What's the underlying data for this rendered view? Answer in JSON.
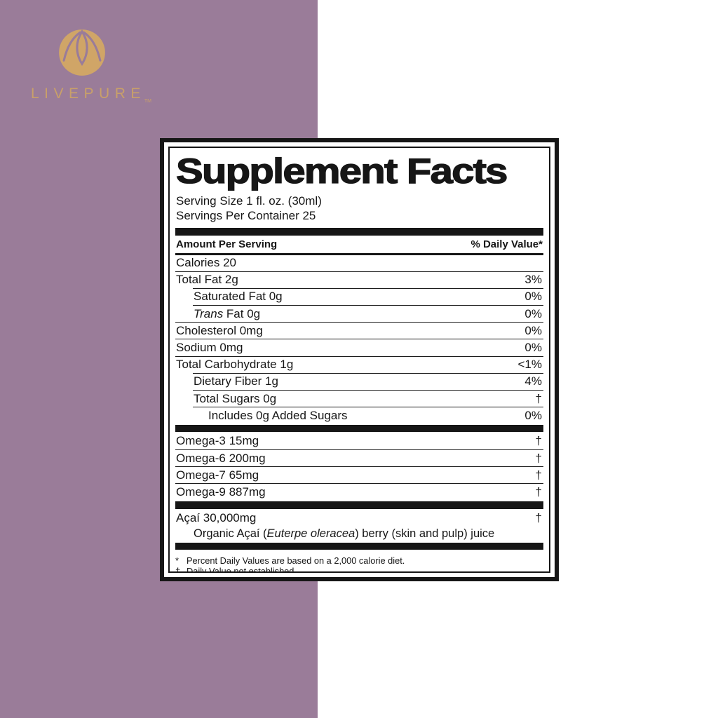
{
  "colors": {
    "purple": "#9a7c99",
    "gold": "#c9a069",
    "logo_gold": "#d0a567",
    "label_black": "#161616"
  },
  "brand": {
    "name": "LIVEPURE",
    "trademark": "TM",
    "logo_icon": "lotus-flower-in-circle"
  },
  "label": {
    "title": "Supplement Facts",
    "serving_size": "Serving Size 1 fl. oz. (30ml)",
    "servings_per_container": "Servings Per Container 25",
    "header": {
      "left": "Amount Per Serving",
      "right": "% Daily Value*"
    },
    "body": [
      {
        "t": "row",
        "ind": 0,
        "seg": [
          {
            "x": "Calories 20"
          }
        ],
        "v": ""
      },
      {
        "t": "rule",
        "ind": 0
      },
      {
        "t": "row",
        "ind": 0,
        "seg": [
          {
            "x": "Total Fat 2g"
          }
        ],
        "v": "3%"
      },
      {
        "t": "rule",
        "ind": 1
      },
      {
        "t": "row",
        "ind": 1,
        "seg": [
          {
            "x": "Saturated Fat 0g"
          }
        ],
        "v": "0%"
      },
      {
        "t": "rule",
        "ind": 1
      },
      {
        "t": "row",
        "ind": 1,
        "seg": [
          {
            "x": "Trans",
            "i": true
          },
          {
            "x": " Fat 0g"
          }
        ],
        "v": "0%"
      },
      {
        "t": "rule",
        "ind": 0
      },
      {
        "t": "row",
        "ind": 0,
        "seg": [
          {
            "x": "Cholesterol 0mg"
          }
        ],
        "v": "0%"
      },
      {
        "t": "rule",
        "ind": 0
      },
      {
        "t": "row",
        "ind": 0,
        "seg": [
          {
            "x": "Sodium 0mg"
          }
        ],
        "v": "0%"
      },
      {
        "t": "rule",
        "ind": 0
      },
      {
        "t": "row",
        "ind": 0,
        "seg": [
          {
            "x": "Total Carbohydrate 1g"
          }
        ],
        "v": "<1%"
      },
      {
        "t": "rule",
        "ind": 1
      },
      {
        "t": "row",
        "ind": 1,
        "seg": [
          {
            "x": "Dietary Fiber 1g"
          }
        ],
        "v": "4%"
      },
      {
        "t": "rule",
        "ind": 1
      },
      {
        "t": "row",
        "ind": 1,
        "seg": [
          {
            "x": "Total Sugars 0g"
          }
        ],
        "v": "†"
      },
      {
        "t": "rule",
        "ind": 1
      },
      {
        "t": "row",
        "ind": 2,
        "seg": [
          {
            "x": "Includes 0g Added Sugars"
          }
        ],
        "v": "0%"
      },
      {
        "t": "bar"
      },
      {
        "t": "row",
        "ind": 0,
        "seg": [
          {
            "x": "Omega-3 15mg"
          }
        ],
        "v": "†"
      },
      {
        "t": "rule",
        "ind": 0
      },
      {
        "t": "row",
        "ind": 0,
        "seg": [
          {
            "x": "Omega-6 200mg"
          }
        ],
        "v": "†"
      },
      {
        "t": "rule",
        "ind": 0
      },
      {
        "t": "row",
        "ind": 0,
        "seg": [
          {
            "x": "Omega-7 65mg"
          }
        ],
        "v": "†"
      },
      {
        "t": "rule",
        "ind": 0
      },
      {
        "t": "row",
        "ind": 0,
        "seg": [
          {
            "x": "Omega-9 887mg"
          }
        ],
        "v": "†"
      },
      {
        "t": "bar"
      },
      {
        "t": "row",
        "ind": 0,
        "seg": [
          {
            "x": "Açaí 30,000mg"
          }
        ],
        "v": "†"
      },
      {
        "t": "row",
        "ind": 1,
        "sub": true,
        "seg": [
          {
            "x": "Organic Açaí ("
          },
          {
            "x": "Euterpe oleracea",
            "i": true
          },
          {
            "x": ") berry (skin and pulp) juice"
          }
        ],
        "v": ""
      },
      {
        "t": "bar"
      }
    ],
    "footnotes": [
      {
        "marker": "*",
        "text": "Percent Daily Values are based on a 2,000 calorie diet."
      },
      {
        "marker": "†",
        "text": "Daily Value not established."
      }
    ]
  }
}
